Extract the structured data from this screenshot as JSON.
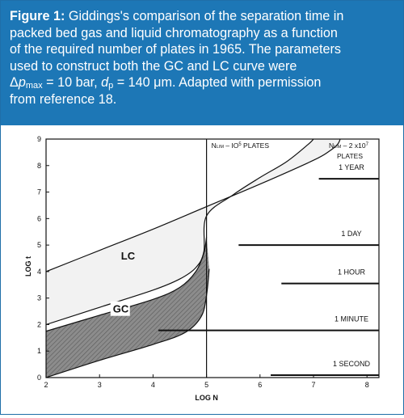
{
  "caption": {
    "lead": "Figure 1:",
    "line1": " Giddings's comparison of the separation time in",
    "line2": "packed bed gas and liquid chromatography as a function",
    "line3": "of the required number of plates in 1965. The parameters",
    "line4": "used to construct both the GC and LC curve were",
    "p5a": "Δ",
    "p5b": "p",
    "p5c": "max",
    "p5d": " = 10 bar, ",
    "p5e": "d",
    "p5f": "p",
    "p5g": " = 140 μm. Adapted with permission",
    "line6": "from reference 18."
  },
  "colors": {
    "caption_bg": "#1d77b6",
    "lc_band": "#f2f2f2",
    "gc_band": "#8c8c8c",
    "ink": "#111111"
  },
  "chart_data": {
    "type": "area",
    "xlabel": "LOG N",
    "ylabel": "LOG t",
    "xlim": [
      2,
      8.2
    ],
    "ylim": [
      0,
      9
    ],
    "xticks": [
      "2",
      "3",
      "4",
      "5",
      "6",
      "7",
      "8"
    ],
    "yticks": [
      "0",
      "1",
      "2",
      "3",
      "4",
      "5",
      "6",
      "7",
      "8",
      "9"
    ],
    "grid": false,
    "series": [
      {
        "name": "LC",
        "band": true,
        "lower": [
          [
            2.0,
            2.0
          ],
          [
            3.0,
            2.65
          ],
          [
            4.0,
            3.3
          ],
          [
            4.5,
            3.72
          ],
          [
            4.8,
            4.15
          ],
          [
            4.95,
            4.75
          ],
          [
            5.0,
            6.1
          ],
          [
            5.5,
            6.9
          ],
          [
            6.0,
            7.55
          ],
          [
            6.5,
            8.15
          ],
          [
            6.9,
            8.8
          ],
          [
            7.0,
            9.0
          ]
        ],
        "upper": [
          [
            2.0,
            4.0
          ],
          [
            3.0,
            4.8
          ],
          [
            4.0,
            5.6
          ],
          [
            5.0,
            6.45
          ],
          [
            6.0,
            7.3
          ],
          [
            7.0,
            8.2
          ],
          [
            7.3,
            8.55
          ],
          [
            7.45,
            8.8
          ],
          [
            7.5,
            9.0
          ]
        ]
      },
      {
        "name": "GC",
        "band": true,
        "lower": [
          [
            2.0,
            0.0
          ],
          [
            3.0,
            0.65
          ],
          [
            4.0,
            1.25
          ],
          [
            4.6,
            1.7
          ],
          [
            4.9,
            2.3
          ],
          [
            5.0,
            3.1
          ],
          [
            5.05,
            4.1
          ]
        ],
        "upper": [
          [
            2.0,
            1.75
          ],
          [
            3.0,
            2.35
          ],
          [
            4.0,
            2.95
          ],
          [
            4.5,
            3.4
          ],
          [
            4.8,
            4.0
          ],
          [
            4.95,
            4.7
          ],
          [
            5.0,
            5.3
          ]
        ]
      }
    ],
    "vlines": [
      {
        "x": 5.0,
        "label_main": "N",
        "label_sub": "LIM",
        "label_rest": " – IO",
        "label_sup": "5",
        "label_end": " PLATES"
      }
    ],
    "right_note": {
      "main": "N",
      "sub": "LIM",
      "mid": " – 2 x10",
      "sup": "7",
      "line2": "PLATES"
    },
    "annotations": [
      {
        "text": "1 YEAR",
        "y": 7.5,
        "x_from": 7.1
      },
      {
        "text": "1 DAY",
        "y": 5.0,
        "x_from": 5.6
      },
      {
        "text": "1 HOUR",
        "y": 3.55,
        "x_from": 6.4
      },
      {
        "text": "1 MINUTE",
        "y": 1.78,
        "x_from": 4.1
      },
      {
        "text": "1 SECOND",
        "y": 0.0,
        "x_from": 6.2
      }
    ]
  }
}
